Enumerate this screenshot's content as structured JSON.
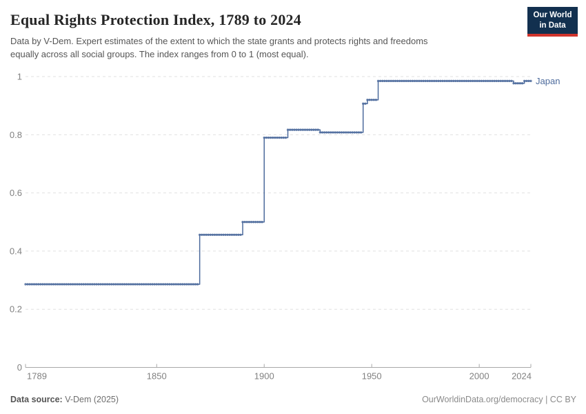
{
  "header": {
    "title": "Equal Rights Protection Index, 1789 to 2024",
    "subtitle": "Data by V-Dem. Expert estimates of the extent to which the state grants and protects rights and freedoms equally across all social groups. The index ranges from 0 to 1 (most equal).",
    "logo": {
      "line1": "Our World",
      "line2": "in Data",
      "bg_color": "#12304f",
      "accent_color": "#d0342c"
    }
  },
  "chart_data": {
    "type": "line",
    "style": "step-after-with-year-markers",
    "title": "Equal Rights Protection Index, 1789 to 2024",
    "xlabel": "",
    "ylabel": "",
    "xlim": [
      1789,
      2024
    ],
    "ylim": [
      0,
      1
    ],
    "x_ticks": [
      1789,
      1850,
      1900,
      1950,
      2000,
      2024
    ],
    "y_ticks": [
      0,
      0.2,
      0.4,
      0.6,
      0.8,
      1
    ],
    "grid": "horizontal-dashed",
    "legend_position": "line-end-label",
    "series": [
      {
        "name": "Japan",
        "color": "#4c6a9c",
        "points": [
          {
            "year": 1789,
            "value": 0.286
          },
          {
            "year": 1870,
            "value": 0.456
          },
          {
            "year": 1890,
            "value": 0.5
          },
          {
            "year": 1900,
            "value": 0.79
          },
          {
            "year": 1911,
            "value": 0.817
          },
          {
            "year": 1926,
            "value": 0.808
          },
          {
            "year": 1946,
            "value": 0.907
          },
          {
            "year": 1948,
            "value": 0.92
          },
          {
            "year": 1953,
            "value": 0.985
          },
          {
            "year": 2016,
            "value": 0.977
          },
          {
            "year": 2021,
            "value": 0.985
          },
          {
            "year": 2024,
            "value": 0.985
          }
        ]
      }
    ]
  },
  "colors": {
    "gridline": "#e0e0e0",
    "axis": "#a8a8a8",
    "tick_label": "#818181",
    "line": "#4c6a9c"
  },
  "footer": {
    "source_label": "Data source:",
    "source_value": "V-Dem (2025)",
    "credit": "OurWorldinData.org/democracy | CC BY"
  }
}
